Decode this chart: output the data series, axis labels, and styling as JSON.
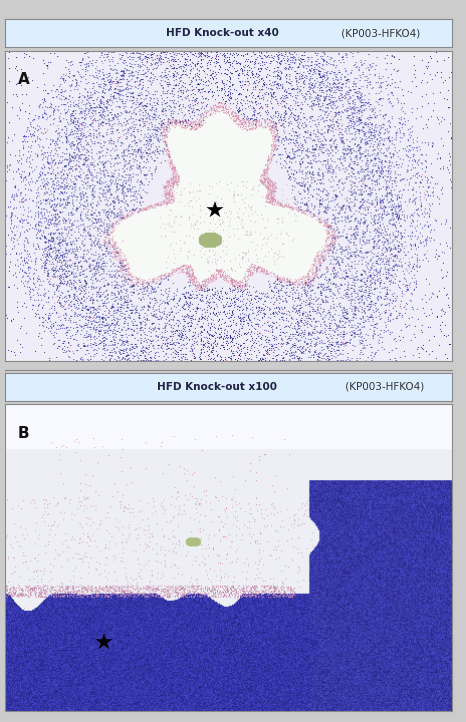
{
  "title_bold_part_a": "HFD Knock-out x40",
  "title_normal_part_a": " (KP003-HFKO4)",
  "title_bold_part_b": "HFD Knock-out x100",
  "title_normal_part_b": " (KP003-HFKO4)",
  "label_a": "A",
  "label_b": "B",
  "header_bg": "#ddeeff",
  "border_color": "#888888",
  "figsize": [
    4.66,
    7.22
  ],
  "dpi": 100
}
